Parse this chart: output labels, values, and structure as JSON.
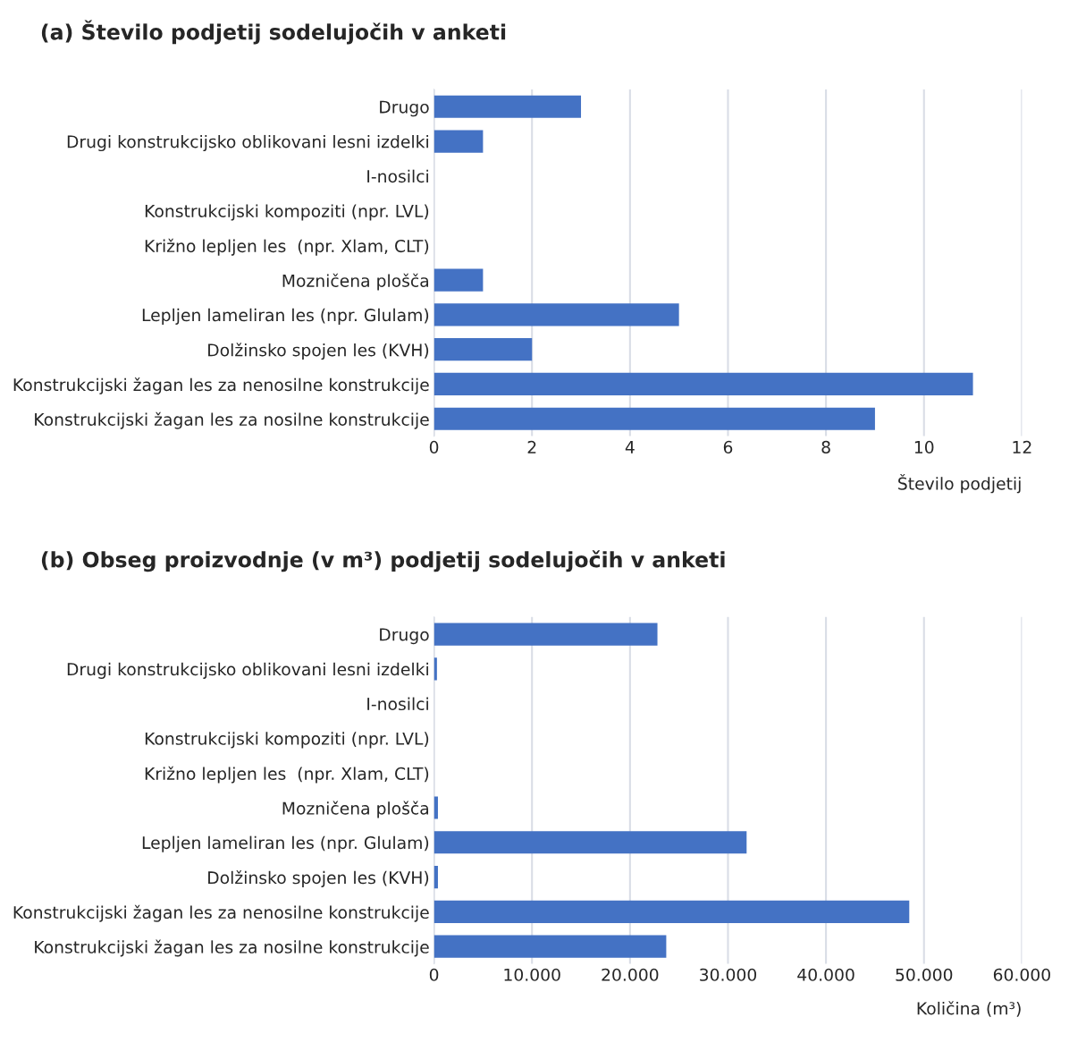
{
  "chart_data": [
    {
      "type": "bar",
      "orientation": "horizontal",
      "title": "(a) Število podjetij sodelujočih v anketi",
      "xlabel": "Število podjetij",
      "categories": [
        "Drugo",
        "Drugi konstrukcijsko oblikovani lesni izdelki",
        "I-nosilci",
        "Konstrukcijski kompoziti (npr. LVL)",
        "Križno lepljen les  (npr. Xlam, CLT)",
        "Mozničena plošča",
        "Lepljen lameliran les (npr. Glulam)",
        "Dolžinsko spojen les (KVH)",
        "Konstrukcijski žagan les za nenosilne konstrukcije",
        "Konstrukcijski žagan les za nosilne konstrukcije"
      ],
      "values": [
        3,
        1,
        0,
        0,
        0,
        1,
        5,
        2,
        11,
        9
      ],
      "color": "#4472c4",
      "xlim": [
        0,
        12
      ],
      "xticks": [
        0,
        2,
        4,
        6,
        8,
        10,
        12
      ],
      "grid": "x"
    },
    {
      "type": "bar",
      "orientation": "horizontal",
      "title": "(b) Obseg proizvodnje (v m³) podjetij sodelujočih v anketi",
      "xlabel": "Količina (m³)",
      "categories": [
        "Drugo",
        "Drugi konstrukcijsko oblikovani lesni izdelki",
        "I-nosilci",
        "Konstrukcijski kompoziti (npr. LVL)",
        "Križno lepljen les  (npr. Xlam, CLT)",
        "Mozničena plošča",
        "Lepljen lameliran les (npr. Glulam)",
        "Dolžinsko spojen les (KVH)",
        "Konstrukcijski žagan les za nenosilne konstrukcije",
        "Konstrukcijski žagan les za nosilne konstrukcije"
      ],
      "values": [
        22800,
        300,
        0,
        0,
        0,
        400,
        31900,
        400,
        48500,
        23700
      ],
      "color": "#4472c4",
      "xlim": [
        0,
        60000
      ],
      "xticks": [
        0,
        {
          "value": 10000,
          "label": "10.000"
        },
        {
          "value": 20000,
          "label": "20.000"
        },
        {
          "value": 30000,
          "label": "30.000"
        },
        {
          "value": 40000,
          "label": "40.000"
        },
        {
          "value": 50000,
          "label": "50.000"
        },
        {
          "value": 60000,
          "label": "60.000"
        }
      ],
      "grid": "x"
    }
  ]
}
